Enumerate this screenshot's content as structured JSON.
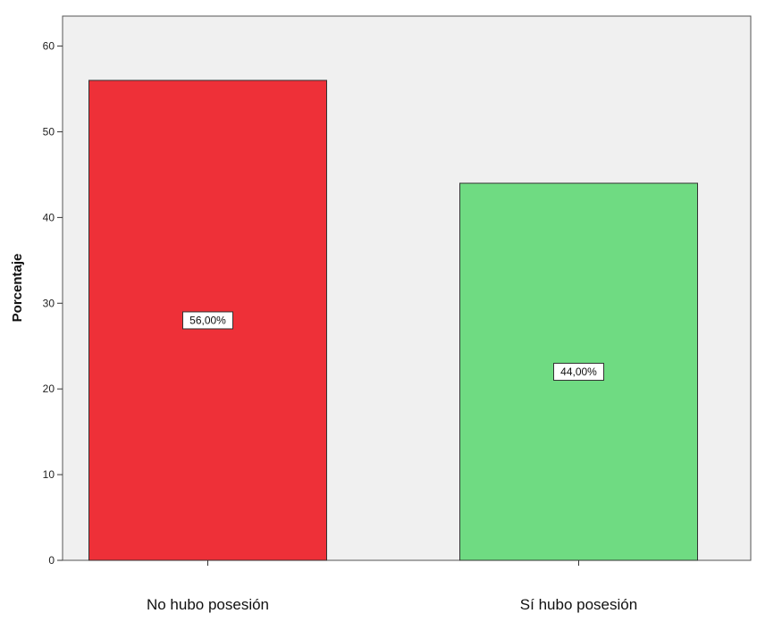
{
  "chart_data": {
    "type": "bar",
    "categories": [
      "No hubo posesión",
      "Sí hubo posesión"
    ],
    "values": [
      56,
      44
    ],
    "data_labels": [
      "56,00%",
      "44,00%"
    ],
    "bar_colors": [
      "#ee3038",
      "#6fdb82"
    ],
    "title": "",
    "xlabel": "",
    "ylabel": "Porcentaje",
    "ylim": [
      0,
      63.5
    ],
    "yticks": [
      0,
      10,
      20,
      30,
      40,
      50,
      60
    ],
    "grid": false,
    "legend": "none",
    "plot_background": "#f0f0f0"
  }
}
